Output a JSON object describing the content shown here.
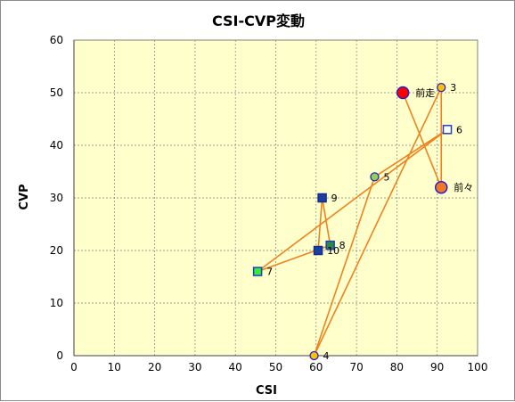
{
  "chart_data": {
    "type": "scatter",
    "title": "CSI-CVP変動",
    "xlabel": "CSI",
    "ylabel": "CVP",
    "xlim": [
      0,
      100
    ],
    "ylim": [
      0,
      60
    ],
    "xticks": [
      0,
      10,
      20,
      30,
      40,
      50,
      60,
      70,
      80,
      90,
      100
    ],
    "yticks": [
      0,
      10,
      20,
      30,
      40,
      50,
      60
    ],
    "grid": true,
    "plot_background": "#ffffcc",
    "grid_color": "#808080",
    "line_color": "#f0821e",
    "points": [
      {
        "label": "前走",
        "x": 81.5,
        "y": 50,
        "marker": "circle-large",
        "fill": "#ff0000",
        "stroke": "#2222cc"
      },
      {
        "label": "前々",
        "x": 91,
        "y": 32,
        "marker": "circle-large",
        "fill": "#f07828",
        "stroke": "#2222cc"
      },
      {
        "label": "3",
        "x": 91,
        "y": 51,
        "marker": "circle",
        "fill": "#ffc000",
        "stroke": "#2222cc"
      },
      {
        "label": "4",
        "x": 59.5,
        "y": 0,
        "marker": "circle",
        "fill": "#ffc000",
        "stroke": "#2222cc"
      },
      {
        "label": "5",
        "x": 74.5,
        "y": 34,
        "marker": "circle",
        "fill": "#92d050",
        "stroke": "#2222cc"
      },
      {
        "label": "6",
        "x": 92.5,
        "y": 43,
        "marker": "square",
        "fill": "#ffffff",
        "stroke": "#1f3fbf"
      },
      {
        "label": "7",
        "x": 45.5,
        "y": 16,
        "marker": "square",
        "fill": "#33ee33",
        "stroke": "#1f3fbf"
      },
      {
        "label": "8",
        "x": 63.5,
        "y": 21,
        "marker": "square",
        "fill": "#2e8b3a",
        "stroke": "#1f3fbf"
      },
      {
        "label": "9",
        "x": 61.5,
        "y": 30,
        "marker": "square",
        "fill": "#1f3f9f",
        "stroke": "#0f2f8f"
      },
      {
        "label": "10",
        "x": 60.5,
        "y": 20,
        "marker": "square",
        "fill": "#1f3f9f",
        "stroke": "#0f2f8f"
      }
    ]
  }
}
